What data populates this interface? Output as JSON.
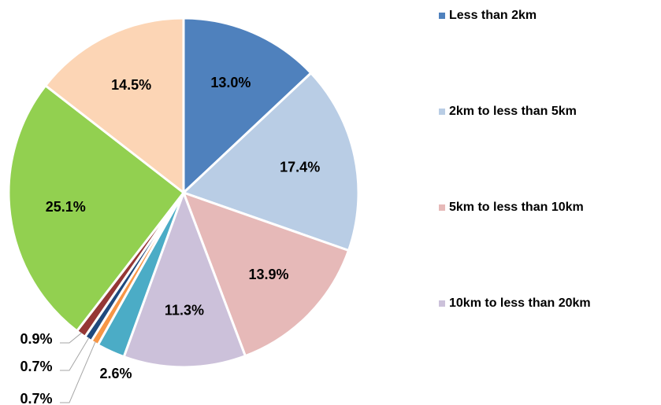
{
  "chart_data": {
    "type": "pie",
    "categories": [
      "Less than 2km",
      "2km to less than 5km",
      "5km to less than 10km",
      "10km to less than 20km",
      null,
      null,
      null,
      null,
      null,
      null
    ],
    "values": [
      13.0,
      17.4,
      13.9,
      11.3,
      2.6,
      0.7,
      0.7,
      0.9,
      25.1,
      14.5
    ],
    "value_labels": [
      "13.0%",
      "17.4%",
      "13.9%",
      "11.3%",
      "2.6%",
      "0.7%",
      "0.7%",
      "0.9%",
      "25.1%",
      "14.5%"
    ],
    "colors": [
      "#4f81bd",
      "#b9cde5",
      "#e6b9b8",
      "#ccc1da",
      "#4bacc6",
      "#f79646",
      "#1f497d",
      "#953735",
      "#92d050",
      "#fcd5b5"
    ],
    "legend": "right"
  }
}
